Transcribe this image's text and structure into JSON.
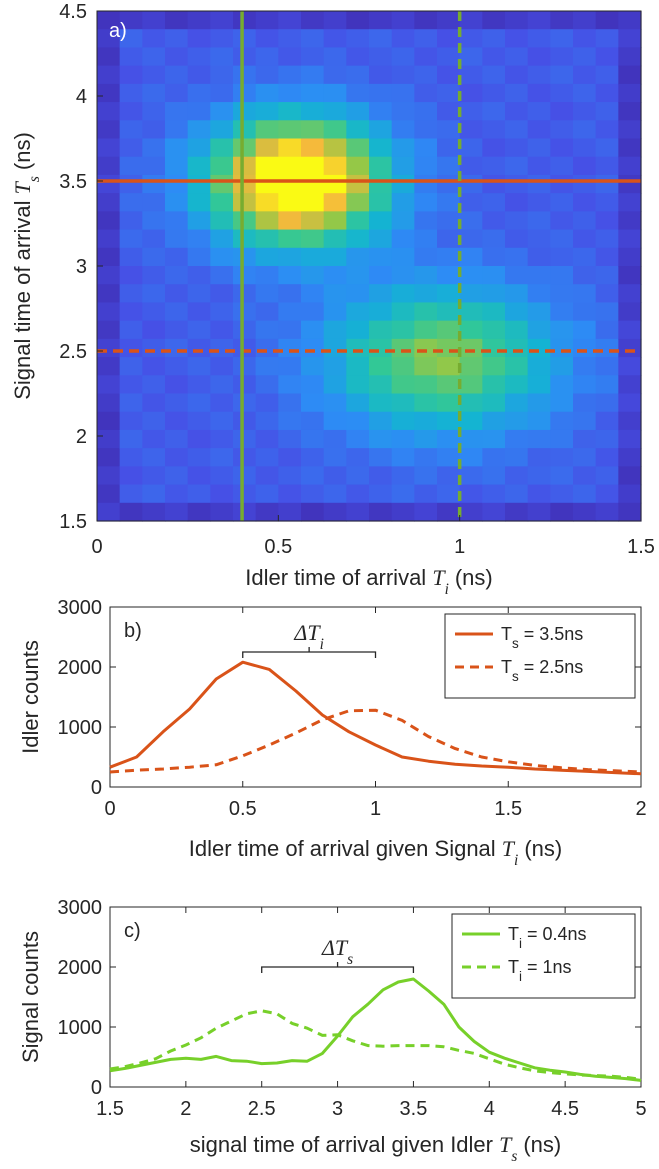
{
  "chart_data": [
    {
      "id": "a",
      "type": "heatmap",
      "panel_label": "a)",
      "xlabel": "Idler time of arrival",
      "xlabel_symbol": "T",
      "xlabel_subscript": "i",
      "xlabel_unit": "(ns)",
      "ylabel": "Signal time of arrival",
      "ylabel_symbol": "T",
      "ylabel_subscript": "s",
      "ylabel_unit": "(ns)",
      "xlim": [
        0,
        1.5
      ],
      "ylim": [
        1.5,
        4.5
      ],
      "xticks": [
        0,
        0.5,
        1,
        1.5
      ],
      "xtick_labels": [
        "0",
        "0.5",
        "1",
        "1.5"
      ],
      "yticks": [
        1.5,
        2,
        2.5,
        3,
        3.5,
        4,
        4.5
      ],
      "ytick_labels": [
        "1.5",
        "2",
        "2.5",
        "3",
        "3.5",
        "4",
        "4.5"
      ],
      "colormap": "parula",
      "blobs": [
        {
          "x": 0.55,
          "y": 3.5,
          "sx": 0.17,
          "sy": 0.26,
          "amp": 1.0
        },
        {
          "x": 0.95,
          "y": 2.45,
          "sx": 0.22,
          "sy": 0.3,
          "amp": 0.55
        }
      ],
      "lines": [
        {
          "orientation": "horizontal",
          "value": 3.5,
          "style": "solid",
          "color": "#d95319"
        },
        {
          "orientation": "horizontal",
          "value": 2.5,
          "style": "dashed",
          "color": "#d95319"
        },
        {
          "orientation": "vertical",
          "value": 0.4,
          "style": "solid",
          "color": "#77ac30"
        },
        {
          "orientation": "vertical",
          "value": 1.0,
          "style": "dashed",
          "color": "#77ac30"
        }
      ]
    },
    {
      "id": "b",
      "type": "line",
      "panel_label": "b)",
      "xlabel": "Idler time of arrival given Signal",
      "xlabel_symbol": "T",
      "xlabel_subscript": "i",
      "xlabel_unit": "(ns)",
      "ylabel": "Idler counts",
      "xlim": [
        0,
        2
      ],
      "ylim": [
        0,
        3000
      ],
      "xticks": [
        0,
        0.5,
        1,
        1.5,
        2
      ],
      "xtick_labels": [
        "0",
        "0.5",
        "1",
        "1.5",
        "2"
      ],
      "yticks": [
        0,
        1000,
        2000,
        3000
      ],
      "ytick_labels": [
        "0",
        "1000",
        "2000",
        "3000"
      ],
      "annotation": {
        "symbol": "ΔT",
        "subscript": "i",
        "x_from": 0.5,
        "x_to": 1.0,
        "y": 2250
      },
      "legend_position": "top-right",
      "x": [
        0,
        0.1,
        0.2,
        0.3,
        0.4,
        0.5,
        0.6,
        0.7,
        0.8,
        0.9,
        1.0,
        1.1,
        1.2,
        1.3,
        1.4,
        1.5,
        1.6,
        1.7,
        1.8,
        1.9,
        2.0
      ],
      "series": [
        {
          "name": "T",
          "name_sub": "s",
          "name_tail": " = 3.5ns",
          "color": "#d95319",
          "style": "solid",
          "values": [
            330,
            500,
            920,
            1300,
            1800,
            2080,
            1960,
            1600,
            1200,
            920,
            700,
            500,
            430,
            380,
            350,
            330,
            300,
            280,
            260,
            240,
            220
          ]
        },
        {
          "name": "T",
          "name_sub": "s",
          "name_tail": " = 2.5ns",
          "color": "#d95319",
          "style": "dashed",
          "values": [
            250,
            280,
            300,
            330,
            370,
            520,
            700,
            900,
            1120,
            1270,
            1280,
            1110,
            840,
            640,
            500,
            420,
            360,
            320,
            290,
            270,
            250
          ]
        }
      ]
    },
    {
      "id": "c",
      "type": "line",
      "panel_label": "c)",
      "xlabel": "signal time of arrival given Idler",
      "xlabel_symbol": "T",
      "xlabel_subscript": "s",
      "xlabel_unit": "(ns)",
      "ylabel": "Signal counts",
      "xlim": [
        1.5,
        5
      ],
      "ylim": [
        0,
        3000
      ],
      "xticks": [
        1.5,
        2,
        2.5,
        3,
        3.5,
        4,
        4.5,
        5
      ],
      "xtick_labels": [
        "1.5",
        "2",
        "2.5",
        "3",
        "3.5",
        "4",
        "4.5",
        "5"
      ],
      "yticks": [
        0,
        1000,
        2000,
        3000
      ],
      "ytick_labels": [
        "0",
        "1000",
        "2000",
        "3000"
      ],
      "annotation": {
        "symbol": "ΔT",
        "subscript": "s",
        "x_from": 2.5,
        "x_to": 3.5,
        "y": 2000
      },
      "legend_position": "top-right",
      "x": [
        1.5,
        1.6,
        1.7,
        1.8,
        1.9,
        2.0,
        2.1,
        2.2,
        2.3,
        2.4,
        2.5,
        2.6,
        2.7,
        2.8,
        2.9,
        3.0,
        3.1,
        3.2,
        3.3,
        3.4,
        3.5,
        3.6,
        3.7,
        3.8,
        3.9,
        4.0,
        4.1,
        4.2,
        4.3,
        4.4,
        4.5,
        4.6,
        4.7,
        4.8,
        4.9,
        5.0
      ],
      "series": [
        {
          "name": "T",
          "name_sub": "i",
          "name_tail": " = 0.4ns",
          "color": "#77d02a",
          "style": "solid",
          "values": [
            270,
            310,
            360,
            410,
            460,
            480,
            460,
            510,
            440,
            430,
            390,
            400,
            440,
            430,
            560,
            850,
            1170,
            1380,
            1620,
            1750,
            1800,
            1600,
            1380,
            1000,
            760,
            580,
            480,
            400,
            320,
            280,
            250,
            210,
            180,
            160,
            140,
            110
          ]
        },
        {
          "name": "T",
          "name_sub": "i",
          "name_tail": " = 1ns",
          "color": "#77d02a",
          "style": "dashed",
          "values": [
            300,
            340,
            400,
            470,
            600,
            700,
            820,
            980,
            1100,
            1220,
            1270,
            1220,
            1060,
            980,
            860,
            870,
            770,
            690,
            680,
            690,
            690,
            690,
            670,
            610,
            560,
            470,
            380,
            320,
            270,
            240,
            220,
            200,
            190,
            180,
            160,
            130
          ]
        }
      ]
    }
  ]
}
